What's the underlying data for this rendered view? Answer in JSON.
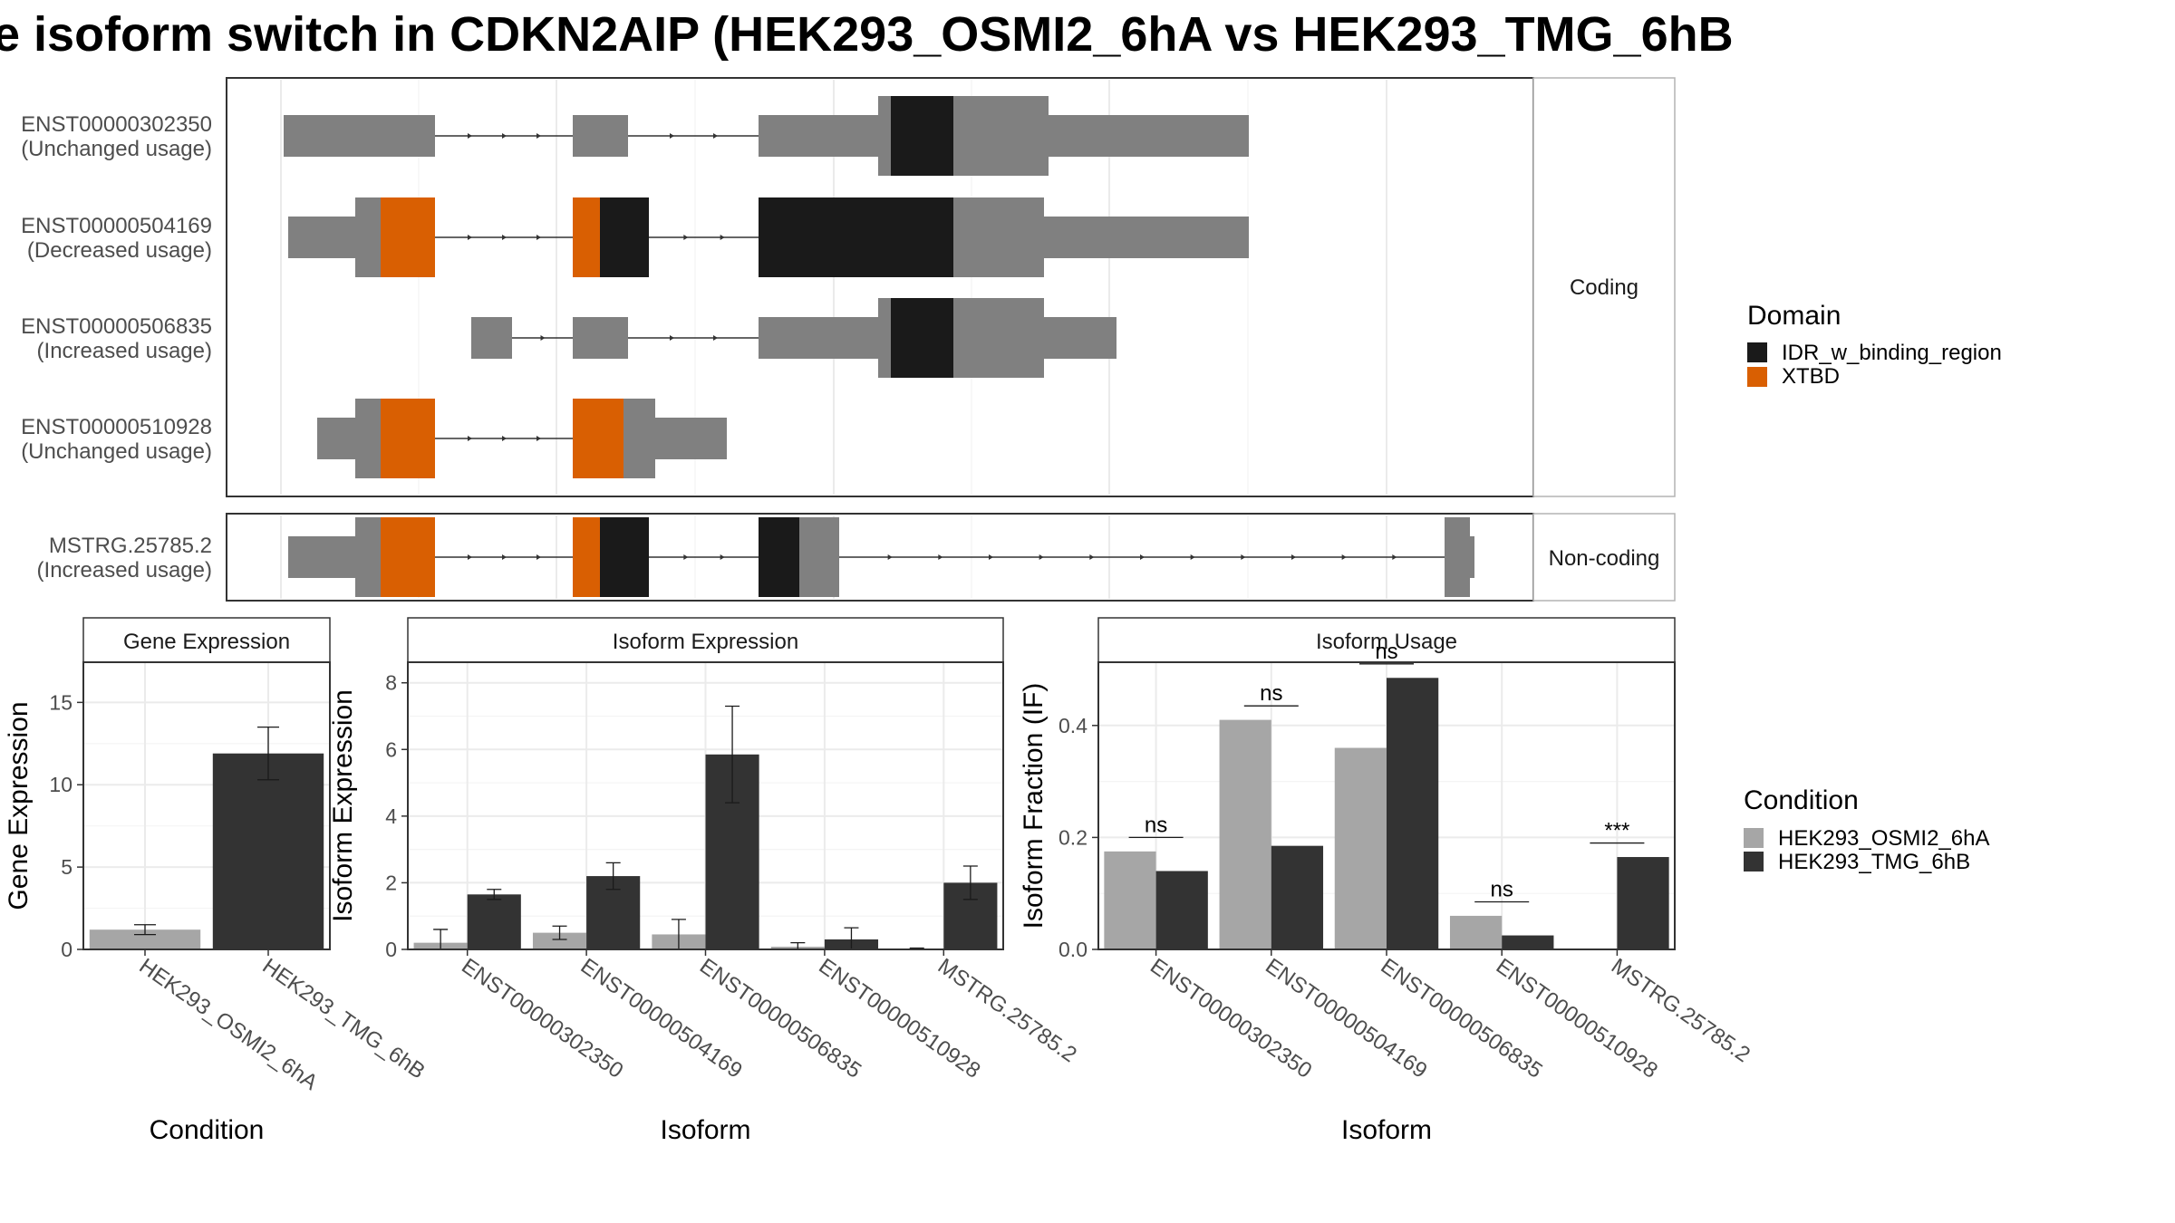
{
  "title": "e isoform switch in CDKN2AIP (HEK293_OSMI2_6hA vs HEK293_TMG_6hB",
  "structure": {
    "coding_label": "Coding",
    "noncoding_label": "Non-coding",
    "domain_legend": {
      "title": "Domain",
      "items": [
        {
          "label": "IDR_w_binding_region",
          "color": "#1a1a1a"
        },
        {
          "label": "XTBD",
          "color": "#d95f02"
        }
      ]
    },
    "colors": {
      "exon": "#808080",
      "idr": "#1a1a1a",
      "xtbd": "#d95f02"
    },
    "isoforms": [
      {
        "id": "ENST00000302350",
        "usage": "(Unchanged usage)",
        "group": "coding"
      },
      {
        "id": "ENST00000504169",
        "usage": "(Decreased usage)",
        "group": "coding"
      },
      {
        "id": "ENST00000506835",
        "usage": "(Increased usage)",
        "group": "coding"
      },
      {
        "id": "ENST00000510928",
        "usage": "(Unchanged usage)",
        "group": "coding"
      },
      {
        "id": "MSTRG.25785.2",
        "usage": "(Increased usage)",
        "group": "noncoding"
      }
    ]
  },
  "condition_legend": {
    "title": "Condition",
    "items": [
      {
        "label": "HEK293_OSMI2_6hA",
        "color": "#a6a6a6"
      },
      {
        "label": "HEK293_TMG_6hB",
        "color": "#333333"
      }
    ]
  },
  "chart_data": [
    {
      "type": "bar",
      "strip": "Gene Expression",
      "xlabel": "Condition",
      "ylabel": "Gene Expression",
      "ylim": [
        0,
        17
      ],
      "yticks": [
        0,
        5,
        10,
        15
      ],
      "categories": [
        "HEK293_OSMI2_6hA",
        "HEK293_TMG_6hB"
      ],
      "values": [
        1.2,
        11.9
      ],
      "error_low": [
        0.9,
        10.3
      ],
      "error_high": [
        1.5,
        13.5
      ]
    },
    {
      "type": "bar",
      "strip": "Isoform Expression",
      "xlabel": "Isoform",
      "ylabel": "Isoform Expression",
      "ylim": [
        0,
        8.4
      ],
      "yticks": [
        0,
        2,
        4,
        6,
        8
      ],
      "categories": [
        "ENST00000302350",
        "ENST00000504169",
        "ENST00000506835",
        "ENST00000510928",
        "MSTRG.25785.2"
      ],
      "series": [
        {
          "name": "HEK293_OSMI2_6hA",
          "values": [
            0.2,
            0.5,
            0.45,
            0.08,
            0.02
          ],
          "error_low": [
            0.0,
            0.3,
            0.0,
            0.0,
            0.0
          ],
          "error_high": [
            0.6,
            0.7,
            0.9,
            0.2,
            0.04
          ]
        },
        {
          "name": "HEK293_TMG_6hB",
          "values": [
            1.65,
            2.2,
            5.85,
            0.3,
            2.0
          ],
          "error_low": [
            1.5,
            1.8,
            4.4,
            0.0,
            1.5
          ],
          "error_high": [
            1.8,
            2.6,
            7.3,
            0.65,
            2.5
          ]
        }
      ]
    },
    {
      "type": "bar",
      "strip": "Isoform Usage",
      "xlabel": "Isoform",
      "ylabel": "Isoform Fraction (IF)",
      "ylim": [
        0,
        0.5
      ],
      "yticks": [
        0.0,
        0.2,
        0.4
      ],
      "ytick_labels": [
        "0.0",
        "0.2",
        "0.4"
      ],
      "categories": [
        "ENST00000302350",
        "ENST00000504169",
        "ENST00000506835",
        "ENST00000510928",
        "MSTRG.25785.2"
      ],
      "series": [
        {
          "name": "HEK293_OSMI2_6hA",
          "values": [
            0.175,
            0.41,
            0.36,
            0.06,
            0.0
          ]
        },
        {
          "name": "HEK293_TMG_6hB",
          "values": [
            0.14,
            0.185,
            0.485,
            0.025,
            0.165
          ]
        }
      ],
      "significance": [
        "ns",
        "ns",
        "ns",
        "ns",
        "***"
      ],
      "sig_y": [
        0.2,
        0.435,
        0.51,
        0.085,
        0.19
      ]
    }
  ]
}
